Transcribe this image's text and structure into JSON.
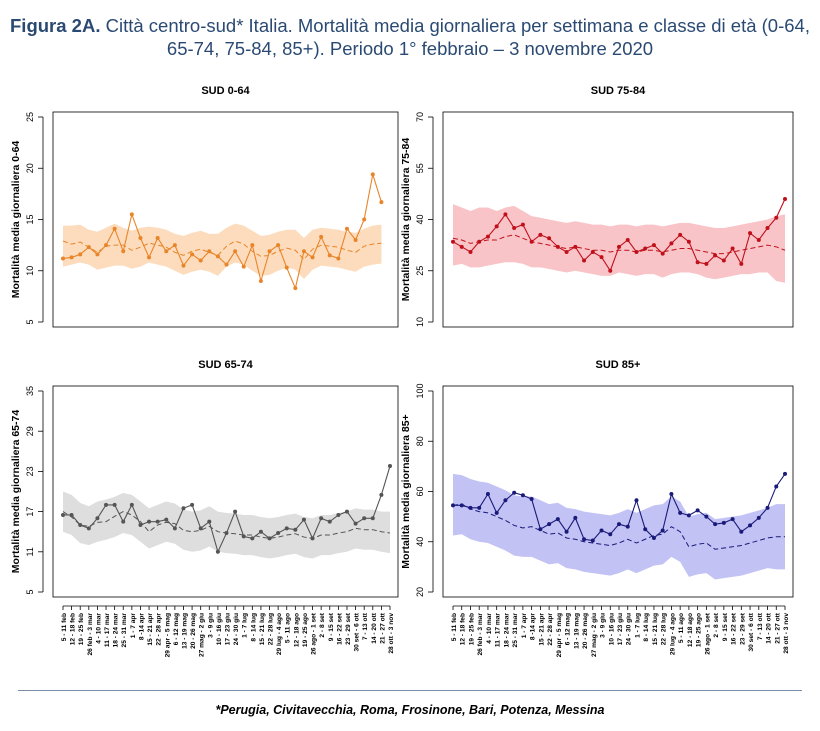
{
  "header": {
    "figure_label": "Figura 2A.",
    "title": "Città centro-sud* Italia. Mortalità media giornaliera per settimana e classe di età (0-64, 65-74, 75-84, 85+). Periodo 1° febbraio – 3 novembre 2020"
  },
  "footnote": "*Perugia, Civitavecchia, Roma, Frosinone, Bari, Potenza, Messina",
  "chart_data": [
    {
      "type": "line",
      "title": "SUD 0-64",
      "ylabel": "Mortalità media giornaliera 0-64",
      "ylim": [
        5,
        25
      ],
      "yticks": [
        5,
        10,
        15,
        20,
        25
      ],
      "color": "#f28e2b",
      "band_color": "#fcdcbc",
      "line_color": "#e8852a",
      "x": [
        "5 - 11 feb",
        "12 - 18 feb",
        "19 - 25 feb",
        "26 feb - 3 mar",
        "4 - 10 mar",
        "11 - 17 mar",
        "18 - 24 mar",
        "25 - 31 mar",
        "1 - 7 apr",
        "8 -14 apr",
        "15 - 21 apr",
        "22 - 28 apr",
        "29 apr - 5 mag",
        "6 - 12 mag",
        "13 - 19 mag",
        "20 - 26 mag",
        "27 mag - 2 giu",
        "3 - 9 giu",
        "10 - 16 giu",
        "17 - 23 giu",
        "24 - 30 giu",
        "1 - 7 lug",
        "8 - 14 lug",
        "15 - 21 lug",
        "22 - 28 lug",
        "29 lug - 4 ago",
        "5 - 11 ago",
        "12 - 18 ago",
        "19 - 25 ago",
        "26 ago - 1 set",
        "2 - 8 set",
        "9 - 15 set",
        "16 - 22 set",
        "23 - 29 set",
        "30 set - 6 ott",
        "7 - 13 ott",
        "14 - 20 ott",
        "21 - 27 ott",
        "28 ott - 3 nov"
      ],
      "series": [
        {
          "role": "observed",
          "values": [
            11.2,
            11.3,
            11.6,
            12.3,
            11.6,
            12.5,
            14.1,
            11.9,
            15.5,
            13.2,
            11.3,
            13.2,
            11.9,
            12.5,
            10.5,
            11.6,
            11.0,
            11.9,
            11.4,
            10.6,
            11.9,
            10.4,
            12.5,
            9.0,
            11.9,
            12.5,
            10.3,
            8.3,
            11.9,
            11.3,
            13.3,
            11.5,
            11.2,
            14.1,
            13.0,
            15.0,
            19.4,
            16.7,
            null
          ]
        },
        {
          "role": "expected",
          "values": [
            12.9,
            12.6,
            12.8,
            12.3,
            11.8,
            12.4,
            12.5,
            12.5,
            12.0,
            12.3,
            12.7,
            12.5,
            12.3,
            11.8,
            11.5,
            11.9,
            12.1,
            11.8,
            11.5,
            12.4,
            12.9,
            12.6,
            11.9,
            11.4,
            11.5,
            11.9,
            12.2,
            12.0,
            11.1,
            12.1,
            12.5,
            12.4,
            12.3,
            12.0,
            11.8,
            12.4,
            12.6,
            12.7,
            null
          ]
        },
        {
          "role": "upper",
          "values": [
            14.4,
            14.4,
            14.5,
            14.0,
            13.8,
            14.2,
            14.6,
            14.2,
            13.9,
            14.2,
            14.3,
            14.2,
            14.0,
            13.6,
            13.4,
            13.7,
            13.9,
            13.6,
            13.6,
            14.2,
            14.6,
            14.4,
            13.9,
            13.4,
            13.5,
            13.8,
            14.0,
            14.0,
            13.2,
            14.0,
            14.2,
            14.1,
            14.0,
            13.8,
            13.7,
            14.1,
            14.4,
            14.5,
            null
          ]
        },
        {
          "role": "lower",
          "values": [
            10.4,
            10.6,
            10.8,
            10.6,
            10.1,
            10.3,
            10.5,
            10.5,
            10.2,
            10.4,
            10.8,
            10.6,
            10.4,
            10.0,
            9.6,
            9.9,
            10.1,
            9.9,
            9.5,
            10.4,
            10.8,
            10.6,
            10.0,
            9.5,
            9.6,
            10.0,
            10.3,
            10.1,
            9.2,
            10.1,
            10.5,
            10.4,
            10.3,
            10.1,
            9.9,
            10.4,
            10.6,
            10.7,
            null
          ]
        }
      ]
    },
    {
      "type": "line",
      "title": "SUD 75-84",
      "ylabel": "Mortalità media giornaliera 75-84",
      "ylim": [
        10,
        70
      ],
      "yticks": [
        10,
        25,
        40,
        55,
        70
      ],
      "color": "#c0101c",
      "band_color": "#f9c4c7",
      "line_color": "#c0101c",
      "series": [
        {
          "role": "observed",
          "values": [
            33.5,
            32.0,
            30.5,
            33.5,
            35.0,
            38.0,
            41.5,
            37.5,
            38.5,
            33.5,
            35.5,
            34.5,
            32.0,
            30.5,
            32.0,
            28.0,
            30.5,
            29.0,
            25.0,
            32.0,
            34.0,
            30.5,
            31.5,
            32.5,
            30.0,
            33.0,
            35.5,
            33.5,
            27.5,
            27.0,
            29.5,
            28.0,
            31.5,
            27.0,
            36.0,
            34.0,
            37.5,
            40.5,
            46.0
          ]
        },
        {
          "role": "expected",
          "values": [
            34.5,
            34.0,
            33.0,
            33.5,
            34.0,
            34.0,
            35.0,
            35.5,
            34.5,
            33.5,
            33.0,
            32.5,
            32.0,
            31.5,
            32.0,
            31.5,
            31.0,
            31.0,
            30.5,
            31.0,
            31.0,
            30.5,
            31.0,
            31.0,
            30.5,
            31.0,
            31.5,
            31.5,
            31.0,
            30.5,
            30.0,
            30.0,
            30.5,
            31.0,
            31.5,
            32.0,
            32.5,
            32.0,
            31.0
          ]
        },
        {
          "role": "upper",
          "values": [
            44.5,
            43.5,
            42.5,
            43.5,
            43.5,
            42.5,
            43.5,
            44.0,
            42.5,
            41.0,
            40.5,
            40.0,
            39.5,
            39.0,
            39.5,
            39.0,
            38.5,
            38.5,
            38.0,
            38.5,
            38.5,
            38.0,
            38.5,
            38.5,
            38.0,
            38.5,
            39.0,
            39.0,
            38.5,
            38.0,
            37.5,
            37.5,
            38.0,
            38.5,
            39.0,
            39.5,
            40.0,
            41.0,
            41.5
          ]
        },
        {
          "role": "lower",
          "values": [
            26.5,
            27.0,
            26.0,
            26.0,
            26.5,
            27.0,
            27.5,
            27.5,
            27.0,
            26.0,
            26.0,
            25.5,
            25.0,
            24.5,
            25.0,
            24.5,
            24.0,
            23.5,
            23.5,
            24.5,
            24.0,
            23.5,
            24.0,
            24.0,
            23.0,
            24.0,
            24.5,
            24.5,
            24.0,
            23.0,
            22.5,
            23.0,
            23.5,
            24.0,
            24.0,
            24.5,
            24.5,
            22.0,
            21.5
          ]
        }
      ]
    },
    {
      "type": "line",
      "title": "SUD 65-74",
      "ylabel": "Mortalità media giornaliera 65-74",
      "ylim": [
        5,
        35
      ],
      "yticks": [
        5,
        11,
        17,
        23,
        29,
        35
      ],
      "color": "#555555",
      "band_color": "#dedede",
      "line_color": "#555555",
      "series": [
        {
          "role": "observed",
          "values": [
            16.5,
            16.5,
            15.0,
            14.5,
            16.0,
            18.0,
            18.0,
            15.5,
            18.0,
            15.0,
            15.5,
            15.5,
            15.8,
            14.5,
            17.5,
            18.0,
            14.5,
            15.5,
            11.0,
            13.8,
            17.0,
            13.3,
            13.0,
            14.0,
            13.0,
            13.8,
            14.5,
            14.3,
            15.8,
            13.0,
            16.0,
            15.5,
            16.5,
            17.0,
            15.2,
            16.0,
            16.0,
            19.5,
            23.8
          ]
        },
        {
          "role": "expected",
          "values": [
            17.0,
            16.2,
            15.0,
            14.8,
            15.4,
            15.5,
            16.3,
            17.0,
            16.5,
            15.5,
            14.0,
            15.0,
            15.4,
            15.2,
            14.2,
            14.0,
            14.2,
            14.8,
            14.0,
            13.8,
            13.7,
            13.5,
            13.5,
            13.2,
            13.0,
            13.2,
            13.5,
            13.7,
            13.2,
            13.0,
            13.5,
            13.5,
            13.8,
            14.0,
            14.5,
            14.3,
            14.3,
            14.0,
            13.8
          ]
        },
        {
          "role": "upper",
          "values": [
            20.0,
            19.5,
            18.3,
            17.8,
            18.5,
            18.8,
            19.2,
            19.8,
            19.5,
            18.5,
            17.5,
            18.0,
            18.5,
            18.2,
            17.3,
            17.0,
            17.2,
            17.8,
            17.0,
            16.8,
            16.7,
            16.5,
            16.5,
            16.2,
            16.0,
            16.2,
            16.5,
            16.7,
            16.2,
            16.0,
            16.5,
            16.5,
            16.8,
            17.0,
            17.5,
            17.3,
            17.3,
            17.0,
            17.0
          ]
        },
        {
          "role": "lower",
          "values": [
            14.0,
            13.5,
            12.3,
            12.0,
            12.5,
            12.8,
            13.2,
            13.8,
            13.5,
            12.5,
            11.5,
            12.0,
            12.5,
            12.2,
            11.3,
            11.0,
            11.2,
            11.8,
            11.0,
            10.8,
            10.7,
            10.5,
            10.5,
            10.2,
            10.0,
            10.2,
            10.5,
            10.7,
            10.2,
            10.0,
            10.5,
            10.5,
            10.8,
            11.0,
            11.5,
            11.3,
            11.3,
            11.0,
            10.8
          ]
        }
      ]
    },
    {
      "type": "line",
      "title": "SUD 85+",
      "ylabel": "Mortalità media giornaliera 85+",
      "ylim": [
        20,
        100
      ],
      "yticks": [
        20,
        40,
        60,
        80,
        100
      ],
      "color": "#1a1a7a",
      "band_color": "#c2c2f5",
      "line_color": "#1a1a7a",
      "series": [
        {
          "role": "observed",
          "values": [
            54.5,
            54.5,
            53.5,
            53.5,
            59.0,
            51.5,
            56.5,
            59.5,
            58.5,
            57.0,
            45.0,
            47.0,
            49.0,
            44.0,
            49.5,
            41.0,
            40.5,
            44.5,
            43.0,
            47.0,
            46.0,
            56.5,
            45.0,
            41.5,
            44.5,
            59.0,
            51.5,
            50.5,
            52.5,
            50.0,
            47.0,
            47.5,
            49.0,
            44.0,
            46.5,
            49.5,
            53.5,
            62.0,
            67.0
          ]
        },
        {
          "role": "expected",
          "values": [
            54.5,
            55.0,
            53.0,
            52.0,
            51.5,
            50.0,
            48.5,
            46.5,
            45.5,
            46.0,
            44.5,
            43.0,
            43.5,
            41.5,
            41.0,
            40.0,
            39.5,
            39.0,
            38.5,
            39.5,
            41.0,
            39.5,
            41.0,
            42.5,
            43.0,
            46.0,
            44.0,
            38.0,
            39.0,
            39.5,
            37.0,
            37.5,
            38.0,
            38.5,
            39.5,
            40.5,
            41.5,
            42.0,
            42.0
          ]
        },
        {
          "role": "upper",
          "values": [
            67.0,
            66.5,
            65.0,
            64.0,
            63.5,
            62.0,
            60.5,
            58.5,
            58.0,
            58.0,
            56.5,
            55.0,
            55.5,
            53.5,
            53.0,
            52.0,
            51.5,
            51.0,
            50.5,
            51.5,
            53.0,
            51.5,
            53.0,
            54.5,
            55.0,
            58.0,
            56.0,
            50.0,
            51.0,
            51.5,
            49.0,
            49.5,
            50.0,
            50.5,
            51.5,
            52.5,
            53.5,
            55.0,
            55.0
          ]
        },
        {
          "role": "lower",
          "values": [
            42.5,
            43.0,
            41.0,
            40.0,
            39.5,
            38.0,
            36.5,
            34.5,
            34.0,
            34.0,
            32.5,
            31.0,
            31.5,
            29.5,
            29.0,
            28.0,
            27.5,
            27.0,
            26.5,
            27.5,
            29.0,
            27.5,
            29.0,
            30.5,
            31.0,
            34.0,
            32.0,
            26.0,
            27.0,
            27.5,
            25.0,
            25.5,
            26.0,
            26.5,
            27.5,
            28.5,
            29.5,
            29.0,
            29.0
          ]
        }
      ]
    }
  ]
}
